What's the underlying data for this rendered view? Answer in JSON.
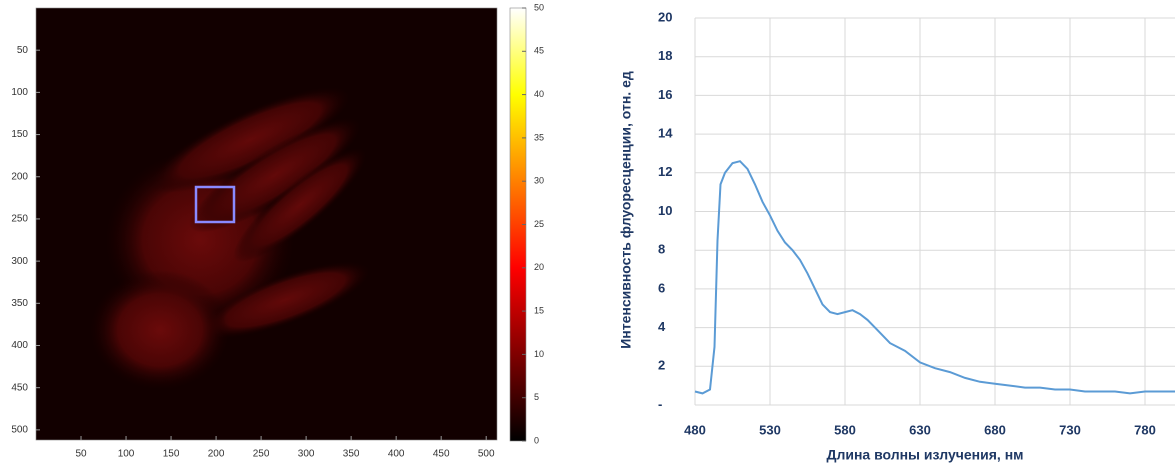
{
  "chart_data": [
    {
      "type": "image",
      "xlim": [
        0,
        512
      ],
      "ylim": [
        0,
        512
      ],
      "yreverse": true,
      "xticks": [
        50,
        100,
        150,
        200,
        250,
        300,
        350,
        400,
        450,
        500
      ],
      "yticks": [
        50,
        100,
        150,
        200,
        250,
        300,
        350,
        400,
        450,
        500
      ],
      "clim": [
        0,
        50
      ],
      "cticks": [
        0,
        5,
        10,
        15,
        20,
        25,
        30,
        35,
        40,
        45,
        50
      ],
      "colormap": [
        "#000000",
        "#800000",
        "#ff0000",
        "#ff8000",
        "#ffff00",
        "#ffffff"
      ]
    },
    {
      "type": "line",
      "ylabel": "Интенсивность флуоресценции, отн. ед",
      "xlabel": "Длина волны излучения, нм",
      "x": [
        480,
        485,
        490,
        493,
        495,
        497,
        500,
        505,
        510,
        515,
        520,
        525,
        530,
        535,
        540,
        545,
        550,
        555,
        560,
        565,
        570,
        575,
        580,
        585,
        590,
        595,
        600,
        605,
        610,
        620,
        630,
        640,
        650,
        660,
        670,
        680,
        690,
        700,
        710,
        720,
        730,
        740,
        750,
        760,
        770,
        780,
        790,
        800
      ],
      "values": [
        0.7,
        0.6,
        0.8,
        3,
        8.5,
        11.4,
        12,
        12.5,
        12.6,
        12.2,
        11.4,
        10.5,
        9.8,
        9.0,
        8.4,
        8.0,
        7.5,
        6.8,
        6.0,
        5.2,
        4.8,
        4.7,
        4.8,
        4.9,
        4.7,
        4.4,
        4.0,
        3.6,
        3.2,
        2.8,
        2.2,
        1.9,
        1.7,
        1.4,
        1.2,
        1.1,
        1.0,
        0.9,
        0.9,
        0.8,
        0.8,
        0.7,
        0.7,
        0.7,
        0.6,
        0.7,
        0.7,
        0.7
      ],
      "color": "#5b9bd5",
      "xlim": [
        480,
        800
      ],
      "ylim": [
        0,
        20
      ],
      "xticks": [
        480,
        530,
        580,
        630,
        680,
        730,
        780
      ],
      "yticks": [
        {
          "value": 0,
          "label": "-"
        },
        2,
        4,
        6,
        8,
        10,
        12,
        14,
        16,
        18,
        20
      ],
      "grid": true
    }
  ]
}
